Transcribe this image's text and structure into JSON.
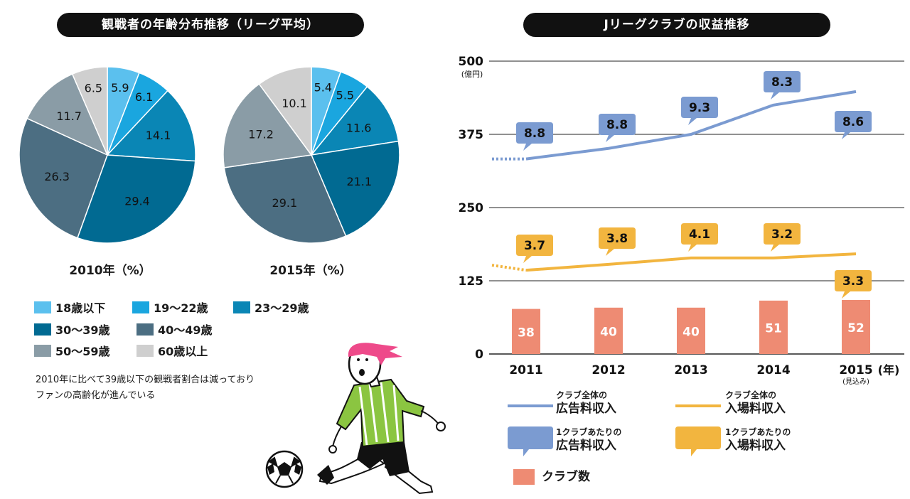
{
  "left_title": "観戦者の年齢分布推移（リーグ平均）",
  "right_title": "Jリーグクラブの収益推移",
  "pie_captions": [
    "2010年（%）",
    "2015年（%）"
  ],
  "pie_legend": [
    {
      "label": "18歳以下",
      "color": "#5bc0ee"
    },
    {
      "label": "19～22歳",
      "color": "#1aa6df"
    },
    {
      "label": "23～29歳",
      "color": "#0a86b5"
    },
    {
      "label": "30～39歳",
      "color": "#016a92"
    },
    {
      "label": "40～49歳",
      "color": "#4c6e82"
    },
    {
      "label": "50～59歳",
      "color": "#8a9ca6"
    },
    {
      "label": "60歳以上",
      "color": "#cfcfcf"
    }
  ],
  "note": [
    "2010年に比べて39歳以下の観戦者割合は減っており",
    "ファンの高齢化が進んでいる"
  ],
  "right_legend": {
    "line_ad": [
      "クラブ全体の",
      "広告料収入"
    ],
    "line_gate": [
      "クラブ全体の",
      "入場料収入"
    ],
    "badge_ad": [
      "1クラブあたりの",
      "広告料収入"
    ],
    "badge_gate": [
      "1クラブあたりの",
      "入場料収入"
    ],
    "clubs": "クラブ数"
  },
  "chart_data": [
    {
      "type": "pie",
      "caption": "2010年（%）",
      "labels": [
        "18歳以下",
        "19～22歳",
        "23～29歳",
        "30～39歳",
        "40～49歳",
        "50～59歳",
        "60歳以上"
      ],
      "values": [
        5.9,
        6.1,
        14.1,
        29.4,
        26.3,
        11.7,
        6.5
      ]
    },
    {
      "type": "pie",
      "caption": "2015年（%）",
      "labels": [
        "18歳以下",
        "19～22歳",
        "23～29歳",
        "30～39歳",
        "40～49歳",
        "50～59歳",
        "60歳以上"
      ],
      "values": [
        5.4,
        5.5,
        11.6,
        21.1,
        29.1,
        17.2,
        10.1
      ]
    },
    {
      "type": "line",
      "title": "Jリーグクラブの収益推移",
      "ylabel": "(億円)",
      "xlabel": "(年)",
      "categories": [
        "2011",
        "2012",
        "2013",
        "2014",
        "2015"
      ],
      "x_sublabels": [
        "",
        "",
        "",
        "",
        "(見込み)"
      ],
      "yticks": [
        0,
        125,
        250,
        375,
        500
      ],
      "ylim": [
        0,
        500
      ],
      "series": [
        {
          "name": "クラブ全体の広告料収入",
          "color": "#7b9bd1",
          "values": [
            333,
            351,
            375,
            425,
            448
          ],
          "lead_in": 333
        },
        {
          "name": "クラブ全体の入場料収入",
          "color": "#f2b53f",
          "values": [
            143,
            153,
            164,
            164,
            171
          ],
          "lead_in": 148
        }
      ],
      "ad_per_club": [
        8.8,
        8.8,
        9.3,
        8.3,
        8.6
      ],
      "gate_per_club": [
        3.7,
        3.8,
        4.1,
        3.2,
        3.3
      ],
      "bars": {
        "name": "クラブ数",
        "color": "#ee8b73",
        "values": [
          38,
          40,
          40,
          51,
          52
        ]
      }
    }
  ]
}
